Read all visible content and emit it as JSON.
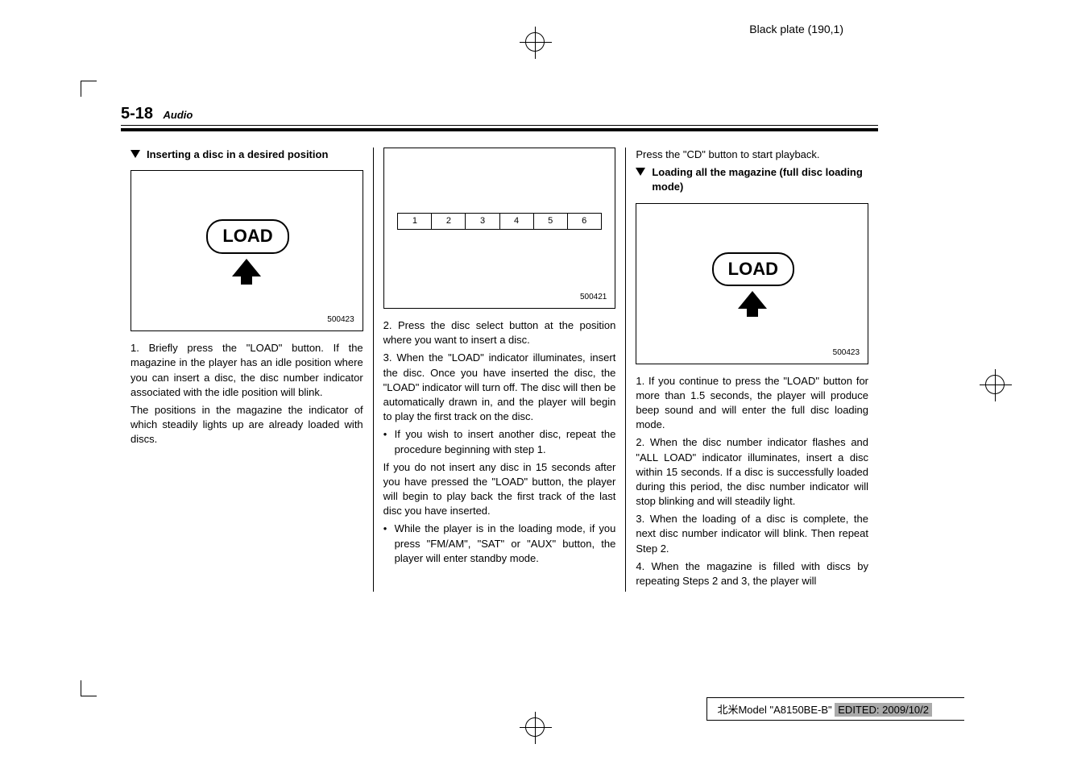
{
  "header_text": "Black plate (190,1)",
  "page_number": "5-18",
  "section_name": "Audio",
  "col1": {
    "title": "Inserting a disc in a desired position",
    "figure": {
      "load_label": "LOAD",
      "id": "500423"
    },
    "p1": "1. Briefly press the \"LOAD\" button. If the magazine in the player has an idle position where you can insert a disc, the disc number indicator associated with the idle position will blink.",
    "p2": "The positions in the magazine the indicator of which steadily lights up are already loaded with discs."
  },
  "col2": {
    "figure": {
      "numbers": [
        "1",
        "2",
        "3",
        "4",
        "5",
        "6"
      ],
      "id": "500421"
    },
    "p1": "2. Press the disc select button at the position where you want to insert a disc.",
    "p2": "3. When the \"LOAD\" indicator illuminates, insert the disc. Once you have inserted the disc, the \"LOAD\" indicator will turn off. The disc will then be automatically drawn in, and the player will begin to play the first track on the disc.",
    "b1": "If you wish to insert another disc, repeat the procedure beginning with step 1.",
    "p3": "If you do not insert any disc in 15 seconds after you have pressed the \"LOAD\" button, the player will begin to play back the first track of the last disc you have inserted.",
    "b2": "While the player is in the loading mode, if you press \"FM/AM\", \"SAT\" or \"AUX\" button, the player will enter standby mode."
  },
  "col3": {
    "p0": "Press the \"CD\" button to start playback.",
    "title": "Loading all the magazine (full disc loading mode)",
    "figure": {
      "load_label": "LOAD",
      "id": "500423"
    },
    "p1": "1. If you continue to press the \"LOAD\" button for more than 1.5 seconds, the player will produce beep sound and will enter the full disc loading mode.",
    "p2": "2. When the disc number indicator flashes and \"ALL LOAD\" indicator illuminates, insert a disc within 15 seconds. If a disc is successfully loaded during this period, the disc number indicator will stop blinking and will steadily light.",
    "p3": "3. When the loading of a disc is complete, the next disc number indicator will blink. Then repeat Step 2.",
    "p4": "4. When the magazine is filled with discs by repeating Steps 2 and 3, the player will"
  },
  "footer": {
    "text1": "北米Model \"A8150BE-B\"",
    "text2": "EDITED: 2009/10/2"
  }
}
